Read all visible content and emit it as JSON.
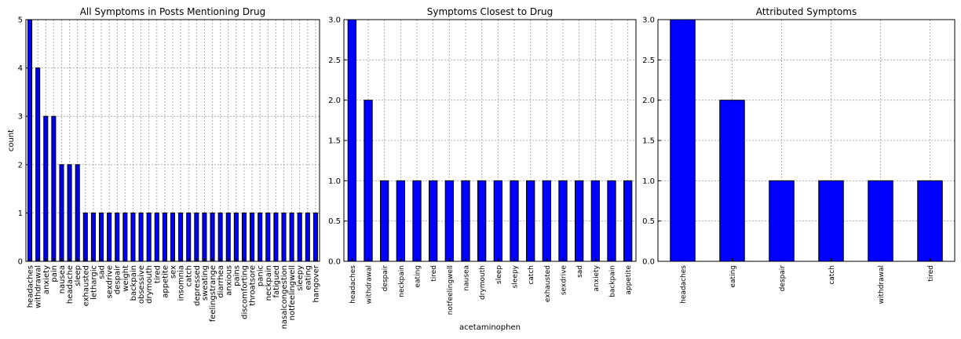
{
  "chart_data": [
    {
      "type": "bar",
      "title": "All Symptoms in Posts Mentioning Drug",
      "xlabel": "",
      "ylabel": "count",
      "ylim": [
        0,
        5
      ],
      "yticks": [
        0,
        1,
        2,
        3,
        4,
        5
      ],
      "grid": true,
      "bar_color": "#0000ff",
      "categories": [
        "headaches",
        "withdrawal",
        "anxiety",
        "pain",
        "nausea",
        "headache",
        "sleep",
        "exhausted",
        "lethargic",
        "sad",
        "sexdrive",
        "despair",
        "weight",
        "backpain",
        "obsessive",
        "drymouth",
        "tired",
        "appetite",
        "sex",
        "insomnia",
        "catch",
        "depressed",
        "sweating",
        "feelingstrange",
        "diarrhea",
        "anxious",
        "pains",
        "discomforting",
        "throatsore",
        "panic",
        "neckpain",
        "fatigued",
        "nasalcongestion",
        "notfeelingwell",
        "sleepy",
        "eating",
        "hangover"
      ],
      "values": [
        5,
        4,
        3,
        3,
        2,
        2,
        2,
        1,
        1,
        1,
        1,
        1,
        1,
        1,
        1,
        1,
        1,
        1,
        1,
        1,
        1,
        1,
        1,
        1,
        1,
        1,
        1,
        1,
        1,
        1,
        1,
        1,
        1,
        1,
        1,
        1,
        1
      ]
    },
    {
      "type": "bar",
      "title": "Symptoms Closest to Drug",
      "xlabel": "acetaminophen",
      "ylabel": "",
      "ylim": [
        0,
        3
      ],
      "yticks": [
        "0.0",
        "0.5",
        "1.0",
        "1.5",
        "2.0",
        "2.5",
        "3.0"
      ],
      "grid": true,
      "bar_color": "#0000ff",
      "categories": [
        "headaches",
        "withdrawal",
        "despair",
        "neckpain",
        "eating",
        "tired",
        "notfeelingwell",
        "nausea",
        "drymouth",
        "sleep",
        "sleepy",
        "catch",
        "exhausted",
        "sexdrive",
        "sad",
        "anxiety",
        "backpain",
        "appetite"
      ],
      "values": [
        3,
        2,
        1,
        1,
        1,
        1,
        1,
        1,
        1,
        1,
        1,
        1,
        1,
        1,
        1,
        1,
        1,
        1
      ]
    },
    {
      "type": "bar",
      "title": "Attributed Symptoms",
      "xlabel": "",
      "ylabel": "",
      "ylim": [
        0,
        3
      ],
      "yticks": [
        "0.0",
        "0.5",
        "1.0",
        "1.5",
        "2.0",
        "2.5",
        "3.0"
      ],
      "grid": true,
      "bar_color": "#0000ff",
      "categories": [
        "headaches",
        "eating",
        "despair",
        "catch",
        "withdrawal",
        "tired"
      ],
      "values": [
        3,
        2,
        1,
        1,
        1,
        1
      ]
    }
  ]
}
